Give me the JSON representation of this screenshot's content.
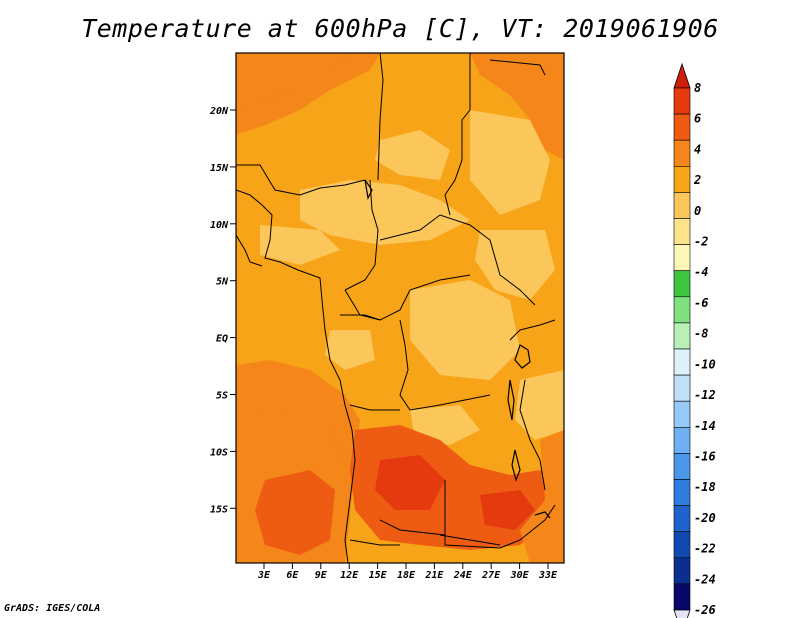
{
  "title": "Temperature at 600hPa [C], VT: 2019061906",
  "credit": "GrADS: IGES/COLA",
  "map": {
    "lat_labels": [
      "20N",
      "15N",
      "10N",
      "5N",
      "EQ",
      "5S",
      "10S",
      "15S"
    ],
    "lon_labels": [
      "3E",
      "6E",
      "9E",
      "12E",
      "15E",
      "18E",
      "21E",
      "24E",
      "27E",
      "30E",
      "33E"
    ]
  },
  "colorbar": {
    "levels": [
      "8",
      "6",
      "4",
      "2",
      "0",
      "-2",
      "-4",
      "-6",
      "-8",
      "-10",
      "-12",
      "-14",
      "-16",
      "-18",
      "-20",
      "-22",
      "-24",
      "-26"
    ],
    "colors": [
      "#e3e5f6",
      "#08086b",
      "#0a2f8f",
      "#1149b3",
      "#1f63cc",
      "#2f7de0",
      "#4b97ec",
      "#6eb0f2",
      "#96c9f6",
      "#bfe0f7",
      "#dff0fb",
      "#b8f0b8",
      "#7fe07f",
      "#3fc43f",
      "#fdf8b8",
      "#fde48a",
      "#fbc65a",
      "#f8a419",
      "#f4861a",
      "#ee5b12",
      "#e43a0e",
      "#cf1f0c"
    ]
  }
}
